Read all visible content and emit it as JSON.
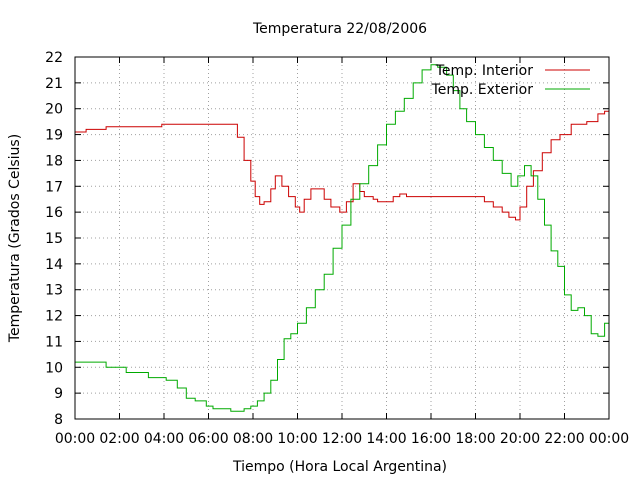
{
  "chart_data": {
    "type": "line",
    "title": "Temperatura 22/08/2006",
    "xlabel": "Tiempo (Hora Local Argentina)",
    "ylabel": "Temperatura (Grados Celsius)",
    "xlim": [
      0,
      24
    ],
    "ylim": [
      8,
      22
    ],
    "grid": true,
    "legend_position": "top-right",
    "x_ticks": [
      "00:00",
      "02:00",
      "04:00",
      "06:00",
      "08:00",
      "10:00",
      "12:00",
      "14:00",
      "16:00",
      "18:00",
      "20:00",
      "22:00",
      "00:00"
    ],
    "y_ticks": [
      "8",
      "9",
      "10",
      "11",
      "12",
      "13",
      "14",
      "15",
      "16",
      "17",
      "18",
      "19",
      "20",
      "21",
      "22"
    ],
    "series": [
      {
        "name": "Temp. Interior",
        "color": "#cc0000",
        "x": [
          0,
          0.4,
          0.5,
          1.3,
          1.4,
          3.8,
          3.9,
          7.1,
          7.3,
          7.6,
          7.9,
          8.1,
          8.3,
          8.5,
          8.8,
          9.0,
          9.3,
          9.6,
          9.9,
          10.1,
          10.3,
          10.6,
          10.9,
          11.2,
          11.5,
          11.9,
          12.1,
          12.2,
          12.5,
          12.8,
          13.0,
          13.4,
          13.6,
          14.1,
          14.3,
          14.6,
          14.9,
          15.1,
          16.0,
          17.0,
          17.9,
          18.4,
          18.8,
          19.2,
          19.5,
          19.8,
          20.0,
          20.3,
          20.6,
          21.0,
          21.4,
          21.8,
          22.3,
          23.0,
          23.5,
          23.8,
          24.0
        ],
        "y": [
          19.1,
          19.1,
          19.2,
          19.2,
          19.3,
          19.3,
          19.4,
          19.4,
          18.9,
          18.0,
          17.2,
          16.6,
          16.3,
          16.4,
          16.9,
          17.4,
          17.0,
          16.6,
          16.2,
          16.0,
          16.5,
          16.9,
          16.9,
          16.5,
          16.2,
          16.0,
          16.0,
          16.4,
          17.1,
          16.8,
          16.6,
          16.5,
          16.4,
          16.4,
          16.6,
          16.7,
          16.6,
          16.6,
          16.6,
          16.6,
          16.6,
          16.4,
          16.2,
          16.0,
          15.8,
          15.7,
          16.2,
          17.0,
          17.6,
          18.3,
          18.8,
          19.0,
          19.4,
          19.5,
          19.8,
          19.9,
          20.0
        ]
      },
      {
        "name": "Temp. Exterior",
        "color": "#00aa00",
        "x": [
          0,
          0.6,
          0.9,
          1.4,
          1.8,
          2.3,
          2.7,
          3.3,
          3.6,
          4.1,
          4.6,
          5.0,
          5.4,
          5.9,
          6.2,
          6.6,
          7.0,
          7.3,
          7.6,
          7.9,
          8.2,
          8.5,
          8.8,
          9.1,
          9.4,
          9.7,
          10.0,
          10.4,
          10.8,
          11.2,
          11.6,
          12.0,
          12.4,
          12.8,
          13.2,
          13.6,
          14.0,
          14.4,
          14.8,
          15.2,
          15.6,
          16.0,
          16.3,
          16.7,
          17.0,
          17.3,
          17.6,
          18.0,
          18.4,
          18.8,
          19.2,
          19.6,
          19.9,
          20.2,
          20.5,
          20.8,
          21.1,
          21.4,
          21.7,
          22.0,
          22.3,
          22.6,
          22.9,
          23.2,
          23.5,
          23.8,
          24.0
        ],
        "y": [
          10.2,
          10.2,
          10.2,
          10.0,
          10.0,
          9.8,
          9.8,
          9.6,
          9.6,
          9.5,
          9.2,
          8.8,
          8.7,
          8.5,
          8.4,
          8.4,
          8.3,
          8.3,
          8.4,
          8.5,
          8.7,
          9.0,
          9.5,
          10.3,
          11.1,
          11.3,
          11.7,
          12.3,
          13.0,
          13.6,
          14.6,
          15.5,
          16.5,
          17.1,
          17.8,
          18.6,
          19.4,
          19.9,
          20.4,
          21.0,
          21.5,
          21.7,
          21.6,
          21.3,
          20.7,
          20.0,
          19.5,
          19.0,
          18.5,
          18.0,
          17.5,
          17.0,
          17.4,
          17.8,
          17.4,
          16.5,
          15.5,
          14.5,
          13.9,
          12.8,
          12.2,
          12.3,
          12.0,
          11.3,
          11.2,
          11.7,
          11.8
        ]
      }
    ]
  }
}
